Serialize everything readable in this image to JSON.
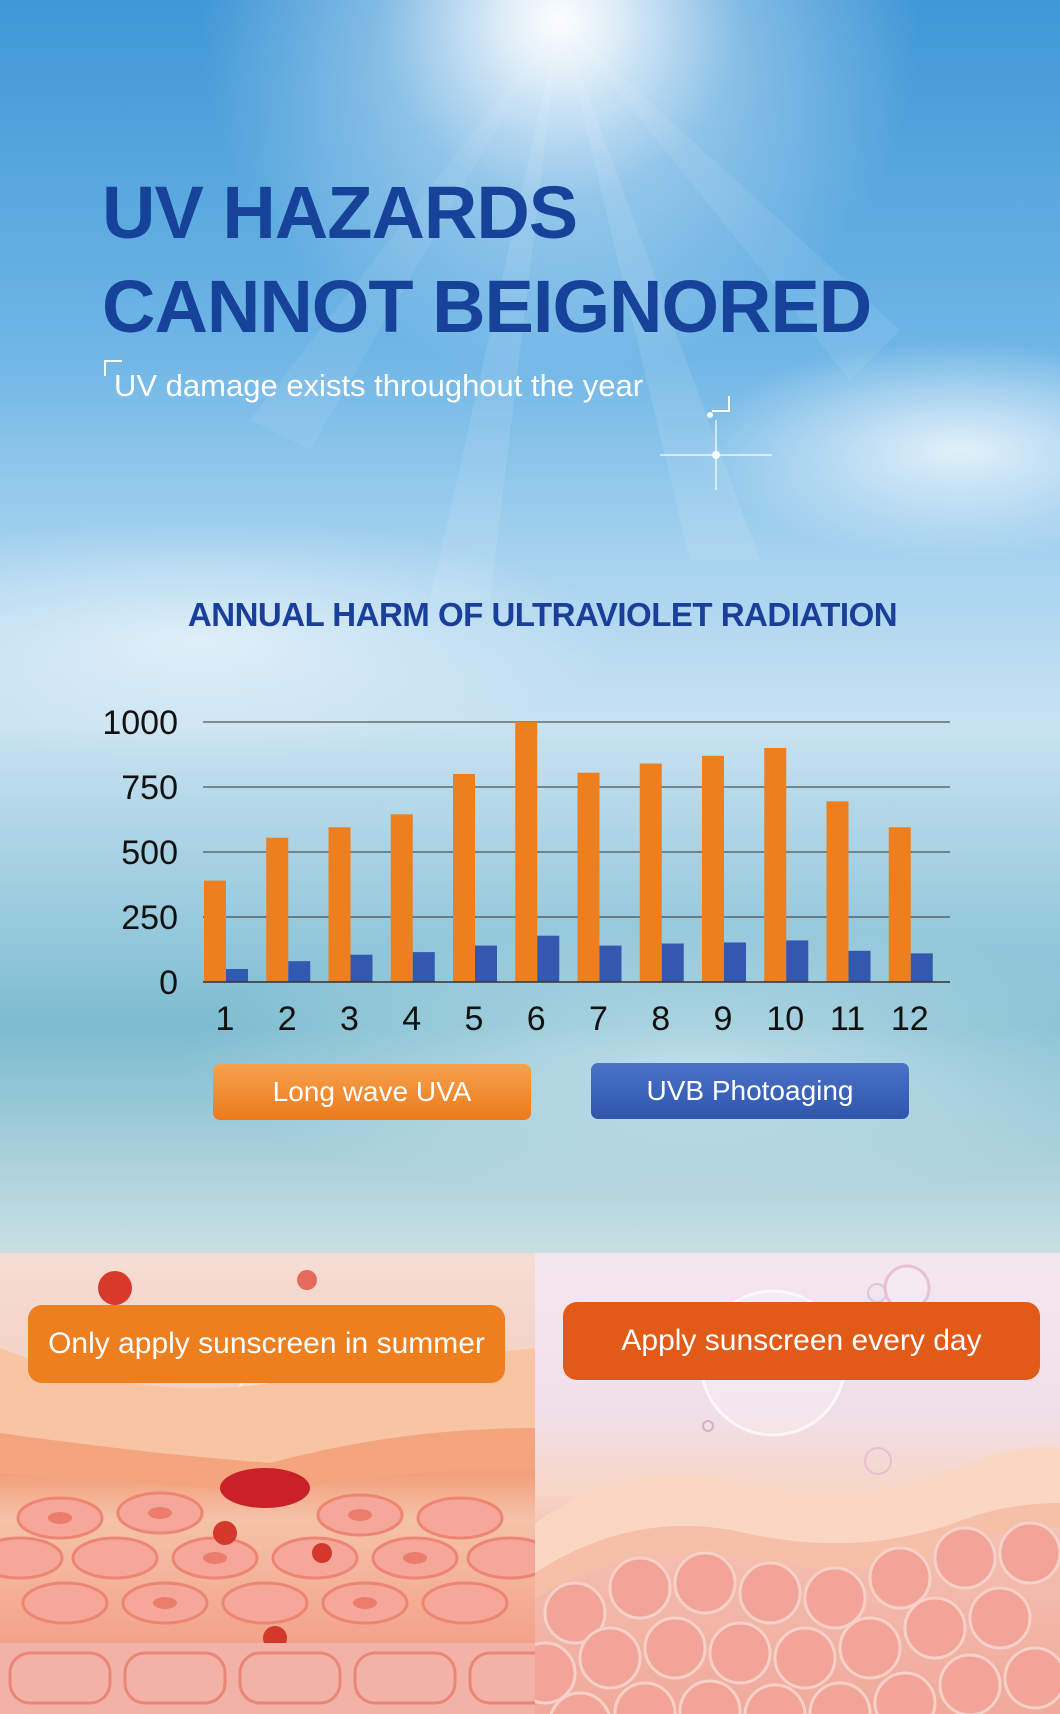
{
  "header": {
    "title_line1": "UV HAZARDS",
    "title_line2": "CANNOT BEIGNORED",
    "subtitle": "UV damage exists throughout the year"
  },
  "chart_title": "ANNUAL HARM OF ULTRAVIOLET RADIATION",
  "legend": {
    "uva": "Long wave UVA",
    "uvb": "UVB Photoaging"
  },
  "colors": {
    "uva": "#ee7f1e",
    "uvb": "#3358b0",
    "headline": "#17429a"
  },
  "chart_data": {
    "type": "bar",
    "title": "ANNUAL HARM OF ULTRAVIOLET RADIATION",
    "xlabel": "",
    "ylabel": "",
    "categories": [
      "1",
      "2",
      "3",
      "4",
      "5",
      "6",
      "7",
      "8",
      "9",
      "10",
      "11",
      "12"
    ],
    "series": [
      {
        "name": "Long wave UVA",
        "values": [
          390,
          555,
          595,
          645,
          800,
          1000,
          805,
          840,
          870,
          900,
          695,
          595
        ]
      },
      {
        "name": "UVB Photoaging",
        "values": [
          50,
          80,
          105,
          115,
          140,
          178,
          140,
          148,
          152,
          160,
          120,
          110
        ]
      }
    ],
    "yticks": [
      0,
      250,
      500,
      750,
      1000
    ],
    "ylim": [
      0,
      1000
    ],
    "grid": true,
    "legend_position": "bottom"
  },
  "comparison": {
    "left_label": "Only apply sunscreen in summer",
    "right_label": "Apply sunscreen every day"
  }
}
